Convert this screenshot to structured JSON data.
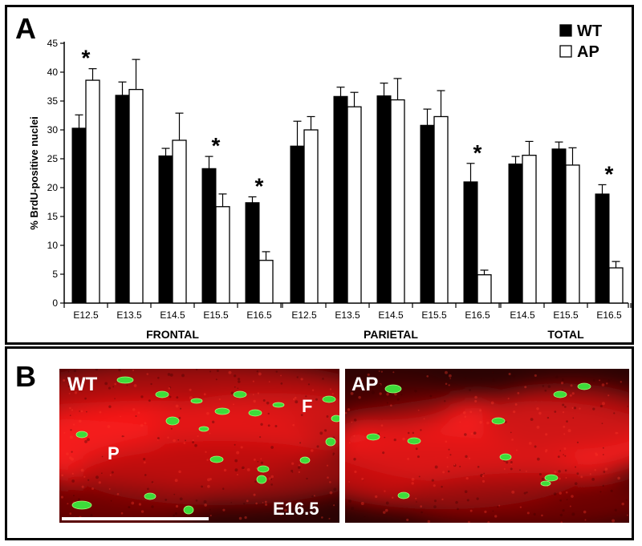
{
  "panel_a": {
    "letter": "A",
    "chart_data": {
      "type": "bar",
      "ylabel": "% BrdU-positive nuclei",
      "ylim": [
        0,
        45
      ],
      "yticks": [
        0,
        5,
        10,
        15,
        20,
        25,
        30,
        35,
        40,
        45
      ],
      "legend_position": "top-right",
      "series": [
        {
          "name": "WT",
          "color": "#000000"
        },
        {
          "name": "AP",
          "color": "#ffffff"
        }
      ],
      "groups": [
        {
          "name": "FRONTAL",
          "categories": [
            "E12.5",
            "E13.5",
            "E14.5",
            "E15.5",
            "E16.5"
          ],
          "WT": [
            30.3,
            36.0,
            25.5,
            23.3,
            17.4
          ],
          "WT_err": [
            2.3,
            2.3,
            1.3,
            2.1,
            1.0
          ],
          "AP": [
            38.6,
            37.0,
            28.2,
            16.7,
            7.4
          ],
          "AP_err": [
            2.0,
            5.2,
            4.7,
            2.2,
            1.5
          ],
          "significant": [
            true,
            false,
            false,
            true,
            true
          ]
        },
        {
          "name": "PARIETAL",
          "categories": [
            "E12.5",
            "E13.5",
            "E14.5",
            "E15.5",
            "E16.5"
          ],
          "WT": [
            27.2,
            35.8,
            35.9,
            30.8,
            21.0
          ],
          "WT_err": [
            4.3,
            1.6,
            2.2,
            2.8,
            3.2
          ],
          "AP": [
            30.0,
            34.0,
            35.2,
            32.3,
            4.9
          ],
          "AP_err": [
            2.3,
            2.5,
            3.7,
            4.5,
            0.8
          ],
          "significant": [
            false,
            false,
            false,
            false,
            true
          ]
        },
        {
          "name": "TOTAL",
          "categories": [
            "E14.5",
            "E15.5",
            "E16.5"
          ],
          "WT": [
            24.1,
            26.7,
            18.9
          ],
          "WT_err": [
            1.3,
            1.2,
            1.6
          ],
          "AP": [
            25.6,
            23.9,
            6.1
          ],
          "AP_err": [
            2.4,
            3.0,
            1.1
          ],
          "significant": [
            false,
            false,
            true
          ]
        }
      ],
      "significance_marker": "*"
    }
  },
  "panel_b": {
    "letter": "B",
    "images": [
      {
        "id": "wt",
        "labels": [
          "WT",
          "P",
          "F",
          "E16.5"
        ]
      },
      {
        "id": "ap",
        "labels": [
          "AP"
        ]
      }
    ]
  }
}
